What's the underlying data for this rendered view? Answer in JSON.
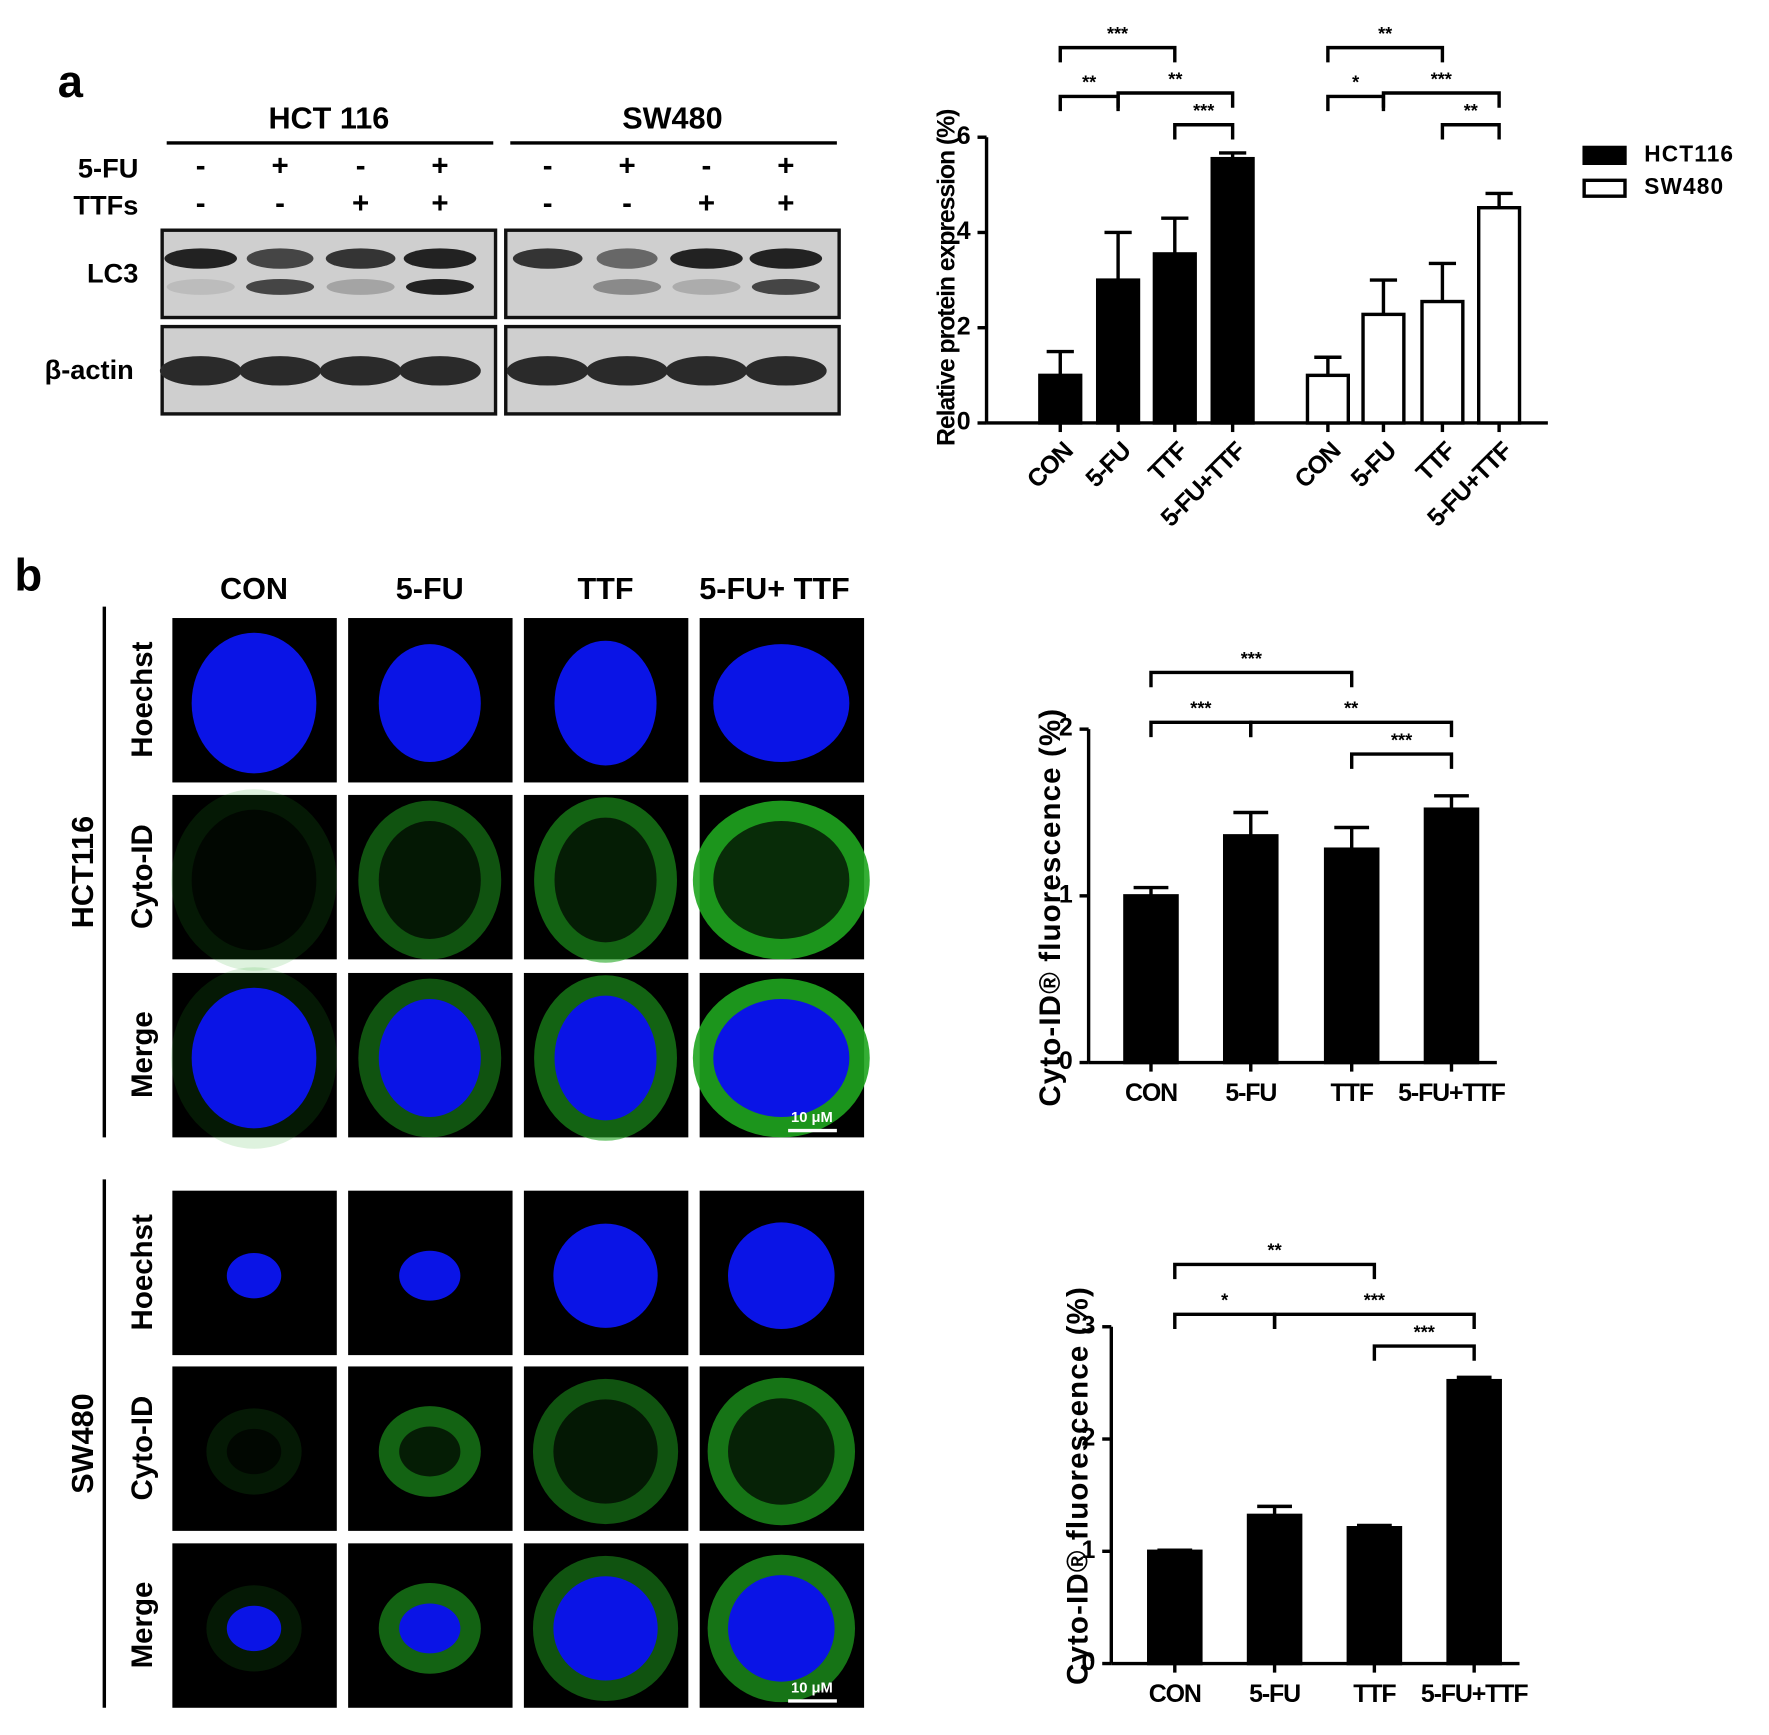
{
  "panel_a": {
    "label": "a",
    "blot": {
      "cell_lines": [
        "HCT 116",
        "SW480"
      ],
      "treatment_rows": [
        {
          "label": "5-FU",
          "signs": [
            "-",
            "+",
            "-",
            "+",
            "-",
            "+",
            "-",
            "+"
          ]
        },
        {
          "label": "TTFs",
          "signs": [
            "-",
            "-",
            "+",
            "+",
            "-",
            "-",
            "+",
            "+"
          ]
        }
      ],
      "bands": [
        "LC3",
        "β-actin"
      ]
    }
  },
  "panel_b": {
    "label": "b",
    "columns": [
      "CON",
      "5-FU",
      "TTF",
      "5-FU+ TTF"
    ],
    "rows": [
      "Hoechst",
      "Cyto-ID",
      "Merge"
    ],
    "cell_lines": [
      "HCT116",
      "SW480"
    ],
    "scale_bars": [
      "10 μM",
      "10 μM"
    ]
  },
  "chart_data": [
    {
      "type": "bar",
      "y_label": "Relative protein expression (%)",
      "categories": [
        "CON",
        "5-FU",
        "TTF",
        "5-FU+TTF"
      ],
      "series": [
        {
          "name": "HCT116",
          "color": "#000000",
          "values": [
            1,
            3.0,
            3.55,
            5.55
          ],
          "errors": [
            0.5,
            1.0,
            0.75,
            0.12
          ]
        },
        {
          "name": "SW480",
          "color": "#ffffff",
          "values": [
            1,
            2.28,
            2.55,
            4.52
          ],
          "errors": [
            0.38,
            0.72,
            0.8,
            0.3
          ]
        }
      ],
      "ylim": [
        0,
        6
      ],
      "yticks": [
        0,
        2,
        4,
        6
      ],
      "annotations": [
        "***",
        "**",
        "**",
        "***",
        "**",
        "*",
        "***",
        "**"
      ],
      "legend": "right"
    },
    {
      "type": "bar",
      "y_label": "Cyto-ID® fluorescence (%)",
      "categories": [
        "CON",
        "5-FU",
        "TTF",
        "5-FU+TTF"
      ],
      "values": [
        1,
        1.36,
        1.28,
        1.52
      ],
      "errors": [
        0.05,
        0.14,
        0.13,
        0.08
      ],
      "color": "#000000",
      "ylim": [
        0,
        2
      ],
      "yticks": [
        0,
        1,
        2
      ],
      "annotations": [
        "***",
        "***",
        "**",
        "***"
      ]
    },
    {
      "type": "bar",
      "y_label": "Cyto-ID® fluorescence (%)",
      "categories": [
        "CON",
        "5-FU",
        "TTF",
        "5-FU+TTF"
      ],
      "values": [
        1,
        1.32,
        1.21,
        2.52
      ],
      "errors": [
        0.01,
        0.08,
        0.02,
        0.03
      ],
      "color": "#000000",
      "ylim": [
        0,
        3
      ],
      "yticks": [
        0,
        1,
        2,
        3
      ],
      "annotations": [
        "**",
        "*",
        "***",
        "***"
      ]
    }
  ]
}
